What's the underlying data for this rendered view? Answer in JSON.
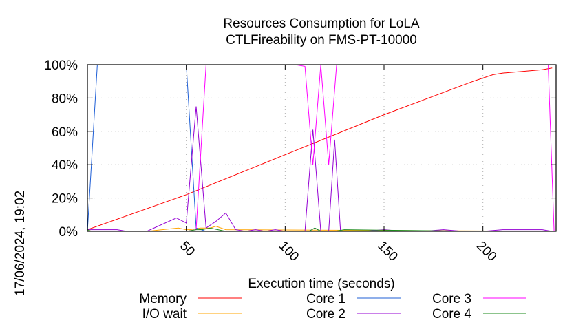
{
  "chart_data": {
    "type": "line",
    "title": "Resources Consumption for LoLA",
    "subtitle": "CTLFireability on FMS-PT-10000",
    "xlabel": "Execution time (seconds)",
    "ylabel": "",
    "timestamp": "17/06/2024, 19:02",
    "xlim": [
      0,
      237
    ],
    "ylim": [
      0,
      100
    ],
    "x_ticks": [
      50,
      100,
      150,
      200
    ],
    "x_tick_labels": [
      "50",
      "100",
      "150",
      "200"
    ],
    "y_ticks": [
      0,
      20,
      40,
      60,
      80,
      100
    ],
    "y_tick_labels": [
      "0%",
      "20%",
      "40%",
      "60%",
      "80%",
      "100%"
    ],
    "grid": true,
    "legend_position": "bottom",
    "series": [
      {
        "name": "Memory",
        "color": "#ff0000",
        "x": [
          0,
          50,
          100,
          150,
          195,
          200,
          205,
          210,
          220,
          230,
          235
        ],
        "y": [
          1,
          22,
          46,
          70,
          90,
          92,
          94,
          95,
          96,
          97,
          98
        ]
      },
      {
        "name": "I/O wait",
        "color": "#ffa500",
        "x": [
          0,
          2,
          5,
          30,
          46,
          50,
          52,
          57,
          62,
          65,
          70,
          235
        ],
        "y": [
          1,
          0,
          0,
          0,
          2,
          1,
          1,
          2,
          2,
          3,
          1,
          0
        ]
      },
      {
        "name": "Core 1",
        "color": "#1f5fd6",
        "x": [
          0,
          5,
          45,
          50,
          55,
          60,
          112,
          115,
          118,
          235
        ],
        "y": [
          0,
          100,
          100,
          100,
          2,
          0,
          0,
          2,
          0,
          0
        ]
      },
      {
        "name": "Core 2",
        "color": "#9400d3",
        "x": [
          0,
          5,
          10,
          15,
          20,
          30,
          45,
          50,
          55,
          60,
          65,
          70,
          75,
          80,
          85,
          90,
          95,
          100,
          110,
          114,
          118,
          122,
          125,
          128,
          130,
          140,
          150,
          160,
          170,
          180,
          190,
          200,
          210,
          220,
          230,
          235
        ],
        "y": [
          1,
          1,
          1,
          1,
          0,
          0,
          8,
          5,
          75,
          2,
          6,
          11,
          1,
          0,
          1,
          0,
          1,
          0,
          0,
          61,
          0,
          0,
          55,
          0,
          0,
          0,
          1,
          0,
          0,
          1,
          0,
          0,
          1,
          1,
          1,
          0
        ],
        "marked_x": [
          0,
          5,
          10,
          15,
          20,
          30,
          45,
          50,
          55,
          60,
          65,
          70,
          75,
          80,
          85,
          90,
          95,
          100,
          110,
          114,
          118,
          122,
          125,
          128,
          130,
          140,
          150,
          160,
          170,
          180,
          190,
          200,
          210,
          220,
          230,
          235
        ],
        "marked_y": [
          1,
          1,
          1,
          1,
          0,
          0,
          8,
          5,
          75,
          2,
          6,
          11,
          1,
          0,
          1,
          0,
          1,
          0,
          0,
          61,
          0,
          0,
          55,
          0,
          0,
          0,
          1,
          0,
          0,
          1,
          0,
          0,
          1,
          1,
          1,
          0
        ]
      },
      {
        "name": "Core 3",
        "color": "#ff00ff",
        "x": [
          0,
          50,
          55,
          60,
          100,
          105,
          110,
          114,
          118,
          122,
          126,
          130,
          200,
          228,
          233,
          236
        ],
        "y": [
          0,
          0,
          1,
          100,
          100,
          100,
          99,
          40,
          100,
          40,
          100,
          100,
          100,
          100,
          100,
          0
        ]
      },
      {
        "name": "Core 4",
        "color": "#1a8a1a",
        "x": [
          0,
          2,
          5,
          45,
          50,
          55,
          58,
          62,
          66,
          70,
          100,
          112,
          115,
          118,
          125,
          130,
          200,
          235
        ],
        "y": [
          1,
          0,
          0,
          0,
          0,
          1,
          1,
          2,
          1,
          0,
          0,
          0,
          2,
          0,
          0,
          1,
          0,
          0
        ]
      }
    ]
  }
}
